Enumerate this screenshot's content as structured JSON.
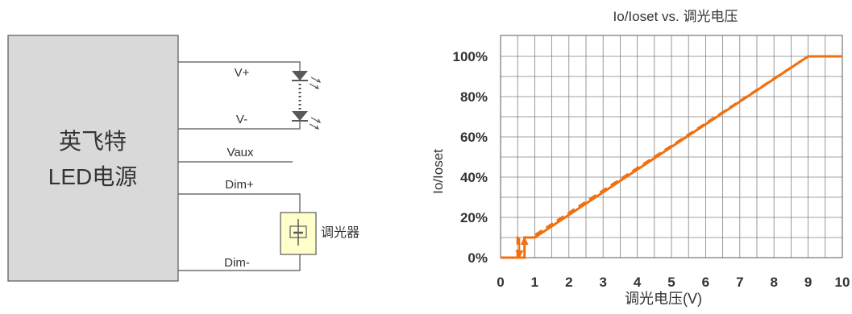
{
  "diagram": {
    "driver_label_line1": "英飞特",
    "driver_label_line2": "LED电源",
    "wires": {
      "v_plus": "V+",
      "v_minus": "V-",
      "vaux": "Vaux",
      "dim_plus": "Dim+",
      "dim_minus": "Dim-"
    },
    "dimmer_label": "调光器"
  },
  "chart_data": {
    "type": "line",
    "title": "Io/Ioset vs. 调光电压",
    "xlabel": "调光电压(V)",
    "ylabel": "Io/Ioset",
    "xlim": [
      0,
      10
    ],
    "ylim": [
      0,
      100
    ],
    "x_ticks": [
      "0",
      "1",
      "2",
      "3",
      "4",
      "5",
      "6",
      "7",
      "8",
      "9",
      "10"
    ],
    "y_ticks": [
      "0%",
      "20%",
      "40%",
      "60%",
      "80%",
      "100%"
    ],
    "grid": true,
    "colors": {
      "series": "#f07010",
      "grid": "#808080"
    },
    "series": [
      {
        "style": "solid",
        "x": [
          0,
          0.7,
          0.7,
          1.0,
          9.0,
          10.0
        ],
        "y": [
          0,
          0,
          10,
          10,
          100,
          100
        ]
      },
      {
        "style": "dashed",
        "x": [
          0.5,
          0.5,
          0.9,
          9.0
        ],
        "y": [
          0,
          10,
          10,
          100
        ]
      }
    ],
    "annotations": [
      {
        "type": "arrow-down",
        "x": 0.55,
        "y_from": 10,
        "y_to": 0
      },
      {
        "type": "arrow-up",
        "x": 0.7,
        "y_from": 0,
        "y_to": 10
      }
    ]
  }
}
